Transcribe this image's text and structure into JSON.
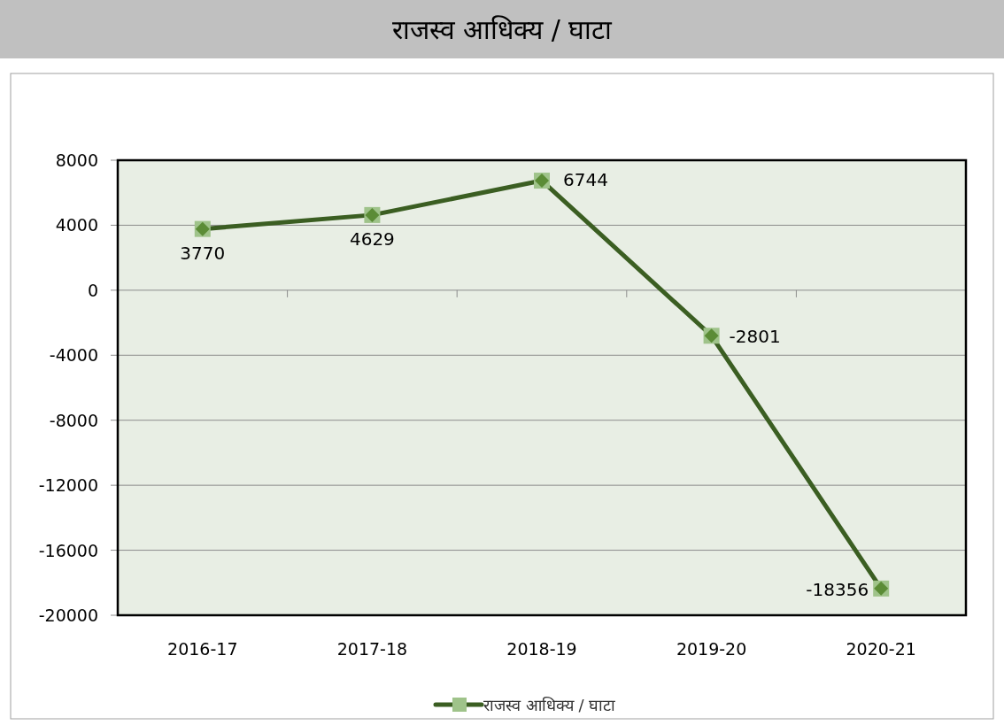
{
  "chart_data": {
    "type": "line",
    "title": "राजस्व आधिक्य / घाटा",
    "categories": [
      "2016-17",
      "2017-18",
      "2018-19",
      "2019-20",
      "2020-21"
    ],
    "series": [
      {
        "name": "राजस्व आधिक्य / घाटा",
        "color": "#3b5e22",
        "values": [
          3770,
          4629,
          6744,
          -2801,
          -18356
        ]
      }
    ],
    "ylim": [
      -20000,
      8000
    ],
    "yticks": [
      -20000,
      -16000,
      -12000,
      -8000,
      -4000,
      0,
      4000,
      8000
    ],
    "grid": "y",
    "legend": "bottom",
    "marker": "square",
    "line_style": "solid",
    "data_labels": true
  }
}
